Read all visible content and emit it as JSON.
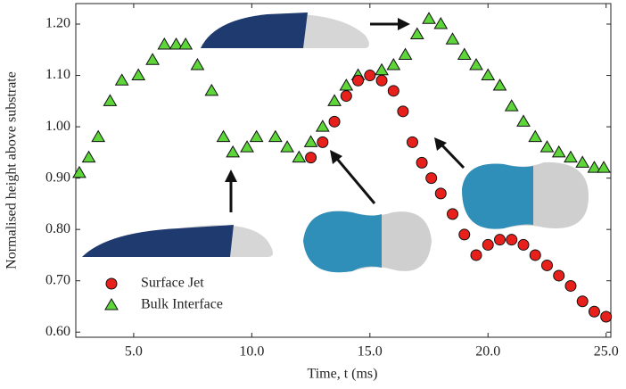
{
  "chart_data": {
    "type": "scatter",
    "xlabel": "Time, t (ms)",
    "ylabel": "Normalised height above substrate",
    "xlim": [
      2.55,
      25.2
    ],
    "ylim": [
      0.59,
      1.24
    ],
    "xticks": [
      {
        "value": 5,
        "label": "5.0"
      },
      {
        "value": 10,
        "label": "10.0"
      },
      {
        "value": 15,
        "label": "15.0"
      },
      {
        "value": 20,
        "label": "20.0"
      },
      {
        "value": 25,
        "label": "25.0"
      }
    ],
    "yticks": [
      {
        "value": 0.6,
        "label": "0.60"
      },
      {
        "value": 0.7,
        "label": "0.70"
      },
      {
        "value": 0.8,
        "label": "0.80"
      },
      {
        "value": 0.9,
        "label": "0.90"
      },
      {
        "value": 1.0,
        "label": "1.00"
      },
      {
        "value": 1.1,
        "label": "1.10"
      },
      {
        "value": 1.2,
        "label": "1.20"
      }
    ],
    "legend": "lower left",
    "series": [
      {
        "name": "Surface Jet",
        "color": "#e8201c",
        "marker": "circle",
        "x": [
          12.5,
          13.0,
          13.5,
          14.0,
          14.5,
          15.0,
          15.5,
          16.0,
          16.4,
          16.8,
          17.2,
          17.6,
          18.0,
          18.5,
          19.0,
          19.5,
          20.0,
          20.5,
          21.0,
          21.5,
          22.0,
          22.5,
          23.0,
          23.5,
          24.0,
          24.5,
          25.0
        ],
        "values": [
          0.94,
          0.97,
          1.01,
          1.06,
          1.09,
          1.1,
          1.09,
          1.07,
          1.03,
          0.97,
          0.93,
          0.9,
          0.87,
          0.83,
          0.79,
          0.75,
          0.77,
          0.78,
          0.78,
          0.77,
          0.75,
          0.73,
          0.71,
          0.69,
          0.66,
          0.64,
          0.63
        ]
      },
      {
        "name": "Bulk Interface",
        "color": "#5ed63a",
        "marker": "triangle",
        "x": [
          2.7,
          3.1,
          3.5,
          4.0,
          4.5,
          5.2,
          5.8,
          6.3,
          6.8,
          7.2,
          7.7,
          8.3,
          8.8,
          9.2,
          9.8,
          10.2,
          11.0,
          11.5,
          12.0,
          12.5,
          13.0,
          13.5,
          14.0,
          14.5,
          15.5,
          16.0,
          16.5,
          17.0,
          17.5,
          18.0,
          18.5,
          19.0,
          19.5,
          20.0,
          20.5,
          21.0,
          21.5,
          22.0,
          22.5,
          23.0,
          23.5,
          24.0,
          24.5,
          24.9
        ],
        "values": [
          0.91,
          0.94,
          0.98,
          1.05,
          1.09,
          1.1,
          1.13,
          1.16,
          1.16,
          1.16,
          1.12,
          1.07,
          0.98,
          0.95,
          0.96,
          0.98,
          0.98,
          0.96,
          0.94,
          0.97,
          1.0,
          1.05,
          1.08,
          1.1,
          1.11,
          1.12,
          1.14,
          1.18,
          1.21,
          1.2,
          1.17,
          1.14,
          1.12,
          1.1,
          1.08,
          1.04,
          1.01,
          0.98,
          0.96,
          0.95,
          0.94,
          0.93,
          0.92,
          0.92
        ]
      }
    ]
  }
}
